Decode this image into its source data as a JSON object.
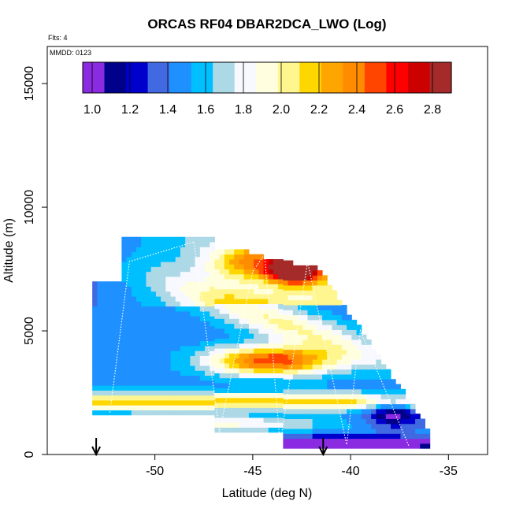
{
  "chart_data": {
    "type": "heatmap",
    "title": "ORCAS RF04 DBAR2DCA_LWO (Log)",
    "flights_note": "Flts: 4",
    "date_note": "MMDD: 0123",
    "xlabel": "Latitude (deg N)",
    "ylabel": "Altitude (m)",
    "xlim": [
      -55.5,
      -33.0
    ],
    "ylim": [
      0,
      16500
    ],
    "x_ticks": [
      -50,
      -45,
      -40,
      -35
    ],
    "x_tick_labels": [
      "-50",
      "-45",
      "-40",
      "-35"
    ],
    "y_ticks": [
      0,
      5000,
      10000,
      15000
    ],
    "y_tick_labels": [
      "0",
      "5000",
      "10000",
      "15000"
    ],
    "colorbar": {
      "range": [
        0.95,
        2.9
      ],
      "ticks": [
        1.0,
        1.2,
        1.4,
        1.6,
        1.8,
        2.0,
        2.2,
        2.4,
        2.6,
        2.8
      ],
      "tick_labels": [
        "1.0",
        "1.2",
        "1.4",
        "1.6",
        "1.8",
        "2.0",
        "2.2",
        "2.4",
        "2.6",
        "2.8"
      ],
      "colors": [
        "#8a2be2",
        "#00008b",
        "#0000cd",
        "#4169e1",
        "#1e90ff",
        "#00bfff",
        "#add8e6",
        "#f8f8ff",
        "#ffffe0",
        "#fff68f",
        "#ffd700",
        "#ffa500",
        "#ff8c00",
        "#ff4500",
        "#ff0000",
        "#cd0000",
        "#a52a2a"
      ]
    },
    "field": {
      "description": "Vertical cross-section of log DBAR2DCA_LWO vs latitude and altitude",
      "patches": [
        {
          "region": "upper-left body",
          "lat_range": [
            -52,
            -46
          ],
          "alt_range": [
            4500,
            8700
          ],
          "value": 1.45
        },
        {
          "region": "upper-right core",
          "lat_range": [
            -43.5,
            -42
          ],
          "alt_range": [
            7200,
            8000
          ],
          "value": 2.8
        },
        {
          "region": "mid layer",
          "lat_range": [
            -47,
            -42.5
          ],
          "alt_range": [
            3300,
            4500
          ],
          "value": 2.55
        },
        {
          "region": "lower band",
          "lat_range": [
            -53,
            -37
          ],
          "alt_range": [
            1800,
            2500
          ],
          "value": 2.25
        },
        {
          "region": "surface layer",
          "lat_range": [
            -43.5,
            -37
          ],
          "alt_range": [
            300,
            700
          ],
          "value": 1.05
        }
      ]
    },
    "arrows": [
      {
        "lat": -53.0,
        "label": "down-arrow"
      },
      {
        "lat": -41.4,
        "label": "down-arrow"
      }
    ]
  }
}
